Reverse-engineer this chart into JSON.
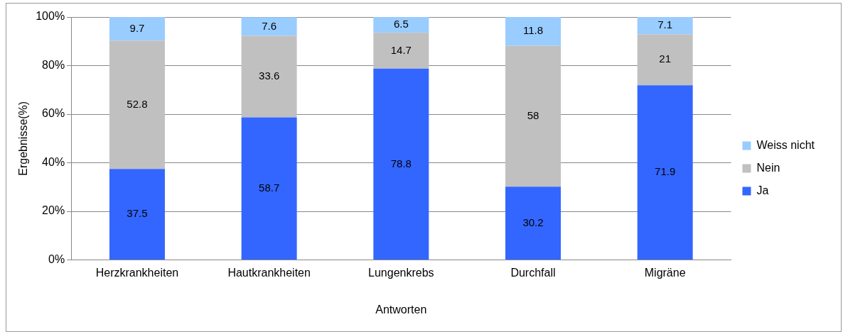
{
  "chart_data": {
    "type": "bar",
    "stacked": true,
    "xlabel": "Antworten",
    "ylabel": "Ergebnisse(%)",
    "categories": [
      "Herzkrankheiten",
      "Hautkrankheiten",
      "Lungenkrebs",
      "Durchfall",
      "Migräne"
    ],
    "series": [
      {
        "name": "Ja",
        "color": "#3366ff",
        "values": [
          37.5,
          58.7,
          78.8,
          30.2,
          71.9
        ]
      },
      {
        "name": "Nein",
        "color": "#c0c0c0",
        "values": [
          52.8,
          33.6,
          14.7,
          58,
          21
        ]
      },
      {
        "name": "Weiss nicht",
        "color": "#99ccff",
        "values": [
          9.7,
          7.6,
          6.5,
          11.8,
          7.1
        ]
      }
    ],
    "ylim": [
      0,
      100
    ],
    "yticks": [
      {
        "value": 0,
        "label": "0%"
      },
      {
        "value": 20,
        "label": "20%"
      },
      {
        "value": 40,
        "label": "40%"
      },
      {
        "value": 60,
        "label": "60%"
      },
      {
        "value": 80,
        "label": "80%"
      },
      {
        "value": 100,
        "label": "100%"
      }
    ],
    "grid": "y",
    "legend": "right",
    "data_labels": true
  }
}
